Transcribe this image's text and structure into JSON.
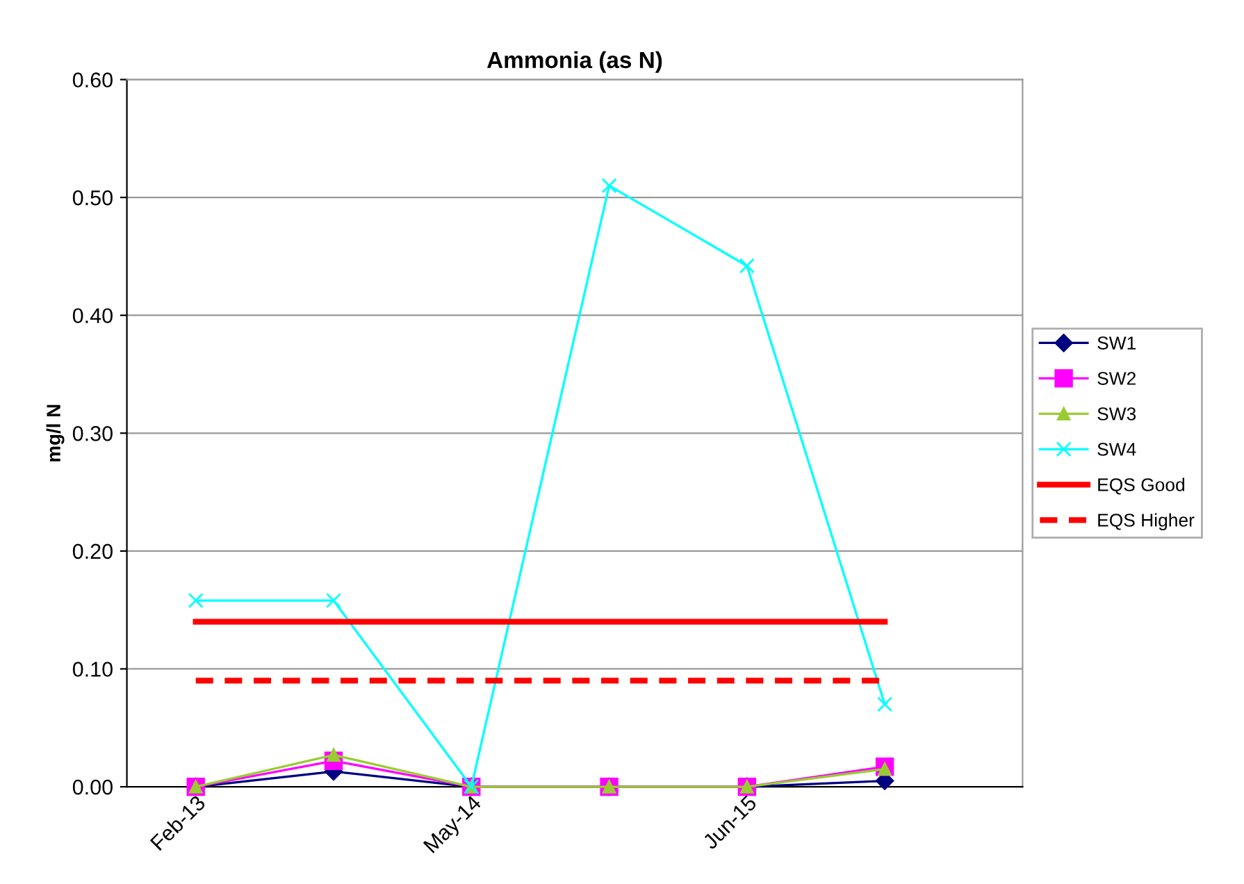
{
  "chart_data": {
    "type": "line",
    "title": "Ammonia (as N)",
    "ylabel": "mg/l N",
    "categories": [
      "Feb-13",
      null,
      "May-14",
      null,
      "Jun-15",
      null
    ],
    "series": [
      {
        "name": "SW1",
        "color": "#000080",
        "marker": "diamond",
        "values": [
          0,
          0.013,
          0,
          0,
          0,
          0.005
        ]
      },
      {
        "name": "SW2",
        "color": "#ff00ff",
        "marker": "square",
        "values": [
          0,
          0.022,
          0,
          0,
          0,
          0.017
        ]
      },
      {
        "name": "SW3",
        "color": "#99cc33",
        "marker": "triangle",
        "values": [
          0,
          0.027,
          0,
          0,
          0,
          0.015
        ]
      },
      {
        "name": "SW4",
        "color": "#00ffff",
        "marker": "cross",
        "values": [
          0.158,
          0.158,
          0,
          0.51,
          0.442,
          0.07
        ]
      },
      {
        "name": "EQS Good",
        "color": "#ff0000",
        "marker": "none",
        "line_style": "solid",
        "values": [
          0.14,
          0.14,
          0.14,
          0.14,
          0.14,
          0.14
        ]
      },
      {
        "name": "EQS Higher",
        "color": "#ff0000",
        "marker": "none",
        "line_style": "dashed",
        "values": [
          0.09,
          0.09,
          0.09,
          0.09,
          0.09,
          0.09
        ]
      }
    ],
    "ylim": [
      0,
      0.6
    ],
    "yticks": [
      {
        "value": 0,
        "label": "0.00"
      },
      {
        "value": 0.1,
        "label": "0.10"
      },
      {
        "value": 0.2,
        "label": "0.20"
      },
      {
        "value": 0.3,
        "label": "0.30"
      },
      {
        "value": 0.4,
        "label": "0.40"
      },
      {
        "value": 0.5,
        "label": "0.50"
      },
      {
        "value": 0.6,
        "label": "0.60"
      }
    ],
    "grid": "y",
    "legend": "right"
  }
}
